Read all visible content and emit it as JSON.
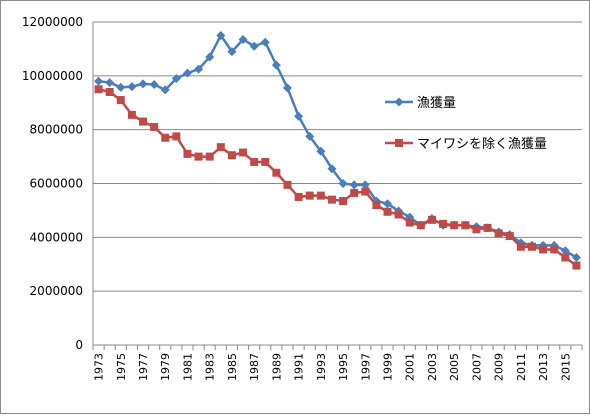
{
  "chart_data": {
    "type": "line",
    "title": "",
    "xlabel": "",
    "ylabel": "",
    "ylim": [
      0,
      12000000
    ],
    "yticks": [
      0,
      2000000,
      4000000,
      6000000,
      8000000,
      10000000,
      12000000
    ],
    "ytick_labels": [
      "0",
      "2000000",
      "4000000",
      "6000000",
      "8000000",
      "10000000",
      "12000000"
    ],
    "xtick_labels": [
      "1973",
      "1975",
      "1977",
      "1979",
      "1981",
      "1983",
      "1985",
      "1987",
      "1989",
      "1991",
      "1993",
      "1995",
      "1997",
      "1999",
      "2001",
      "2003",
      "2005",
      "2007",
      "2009",
      "2011",
      "2013",
      "2015"
    ],
    "grid": "horizontal",
    "legend_position": "right",
    "x": [
      1973,
      1974,
      1975,
      1976,
      1977,
      1978,
      1979,
      1980,
      1981,
      1982,
      1983,
      1984,
      1985,
      1986,
      1987,
      1988,
      1989,
      1990,
      1991,
      1992,
      1993,
      1994,
      1995,
      1996,
      1997,
      1998,
      1999,
      2000,
      2001,
      2002,
      2003,
      2004,
      2005,
      2006,
      2007,
      2008,
      2009,
      2010,
      2011,
      2012,
      2013,
      2014,
      2015,
      2016
    ],
    "series": [
      {
        "name": "漁獲量",
        "color": "#4a7ebb",
        "marker": "diamond",
        "values": [
          9800000,
          9750000,
          9570000,
          9600000,
          9700000,
          9680000,
          9480000,
          9900000,
          10100000,
          10250000,
          10700000,
          11500000,
          10900000,
          11350000,
          11100000,
          11250000,
          10400000,
          9550000,
          8500000,
          7750000,
          7200000,
          6550000,
          6000000,
          5950000,
          5950000,
          5350000,
          5250000,
          4980000,
          4750000,
          4450000,
          4700000,
          4450000,
          4450000,
          4450000,
          4400000,
          4350000,
          4200000,
          4100000,
          3800000,
          3700000,
          3700000,
          3700000,
          3500000,
          3250000
        ]
      },
      {
        "name": "マイワシを除く漁獲量",
        "color": "#be4b48",
        "marker": "square",
        "values": [
          9500000,
          9400000,
          9100000,
          8550000,
          8300000,
          8100000,
          7700000,
          7750000,
          7100000,
          7000000,
          7000000,
          7350000,
          7050000,
          7150000,
          6800000,
          6800000,
          6400000,
          5950000,
          5500000,
          5550000,
          5550000,
          5400000,
          5350000,
          5650000,
          5700000,
          5200000,
          4950000,
          4850000,
          4550000,
          4450000,
          4650000,
          4500000,
          4450000,
          4450000,
          4300000,
          4350000,
          4150000,
          4050000,
          3650000,
          3650000,
          3550000,
          3550000,
          3250000,
          2950000
        ]
      }
    ]
  }
}
